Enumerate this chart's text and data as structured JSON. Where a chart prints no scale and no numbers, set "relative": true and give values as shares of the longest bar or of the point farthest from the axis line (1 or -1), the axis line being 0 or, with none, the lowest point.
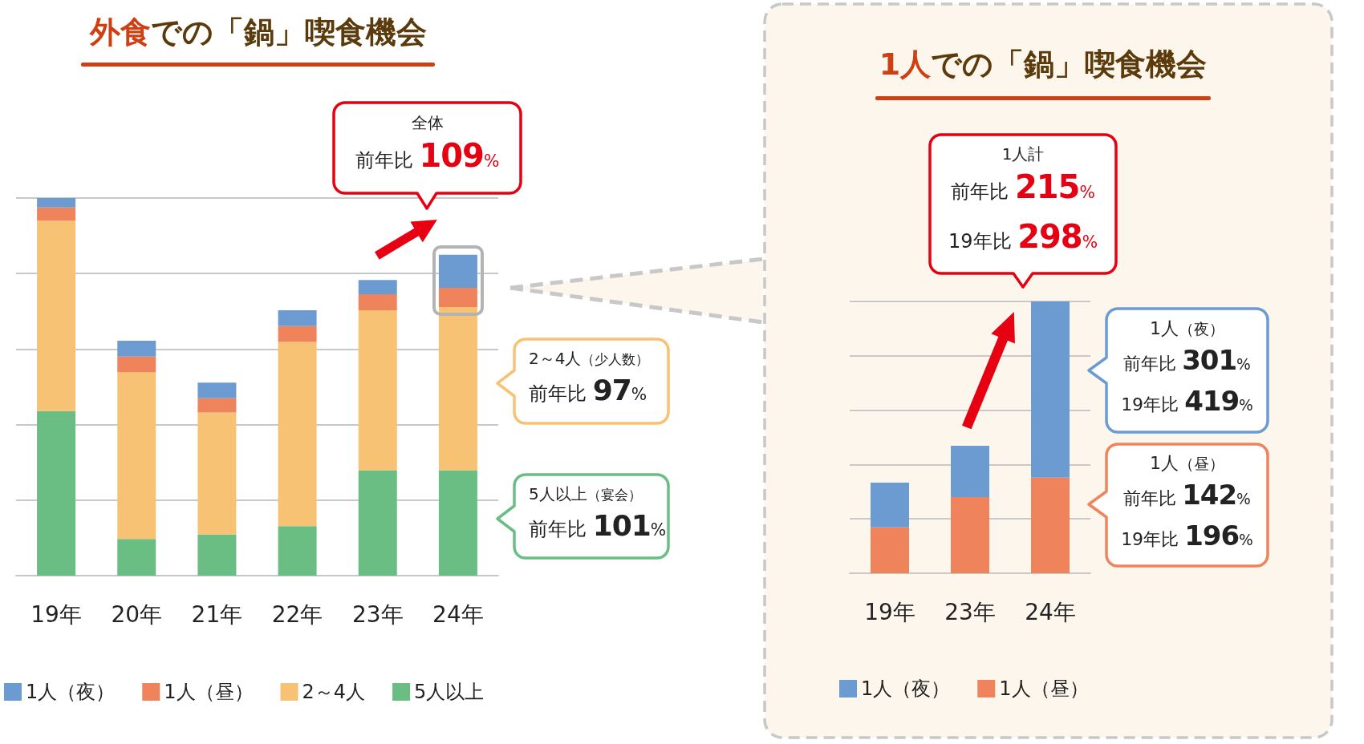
{
  "chart_data": [
    {
      "type": "bar",
      "title": "外食での「鍋」喫食機会",
      "categories": [
        "19年",
        "20年",
        "21年",
        "22年",
        "23年",
        "24年"
      ],
      "stacked": true,
      "relative": true,
      "series": [
        {
          "name": "5人以上",
          "color": "#6abd83",
          "values": [
            0.436,
            0.097,
            0.109,
            0.131,
            0.279,
            0.279
          ]
        },
        {
          "name": "2～4人",
          "color": "#f7c273",
          "values": [
            0.504,
            0.441,
            0.323,
            0.488,
            0.424,
            0.432
          ]
        },
        {
          "name": "1人（昼）",
          "color": "#ef845c",
          "values": [
            0.035,
            0.042,
            0.038,
            0.042,
            0.042,
            0.051
          ]
        },
        {
          "name": "1人（夜）",
          "color": "#6c9bd2",
          "values": [
            0.025,
            0.042,
            0.041,
            0.042,
            0.038,
            0.088
          ]
        }
      ],
      "grid": "y",
      "legend": "bottom left",
      "tick_labels": "x",
      "annotations": [
        "全体",
        "前年比 109%",
        "2～4人（少人数）",
        "前年比 97%",
        "5人以上（宴会）",
        "前年比 101%"
      ]
    },
    {
      "type": "bar",
      "title": "1人での「鍋」喫食機会",
      "categories": [
        "19年",
        "23年",
        "24年"
      ],
      "stacked": true,
      "relative": true,
      "series": [
        {
          "name": "1人（昼）",
          "color": "#ef845c",
          "values": [
            0.169,
            0.28,
            0.352
          ]
        },
        {
          "name": "1人（夜）",
          "color": "#6c9bd2",
          "values": [
            0.164,
            0.189,
            0.648
          ]
        }
      ],
      "grid": "y",
      "legend": "bottom left",
      "tick_labels": "x",
      "annotations": [
        "1人計",
        "前年比 215%",
        "19年比 298%",
        "1人（夜）",
        "前年比 301%",
        "19年比 419%",
        "1人（昼）",
        "前年比 142%",
        "19年比 196%"
      ]
    }
  ]
}
